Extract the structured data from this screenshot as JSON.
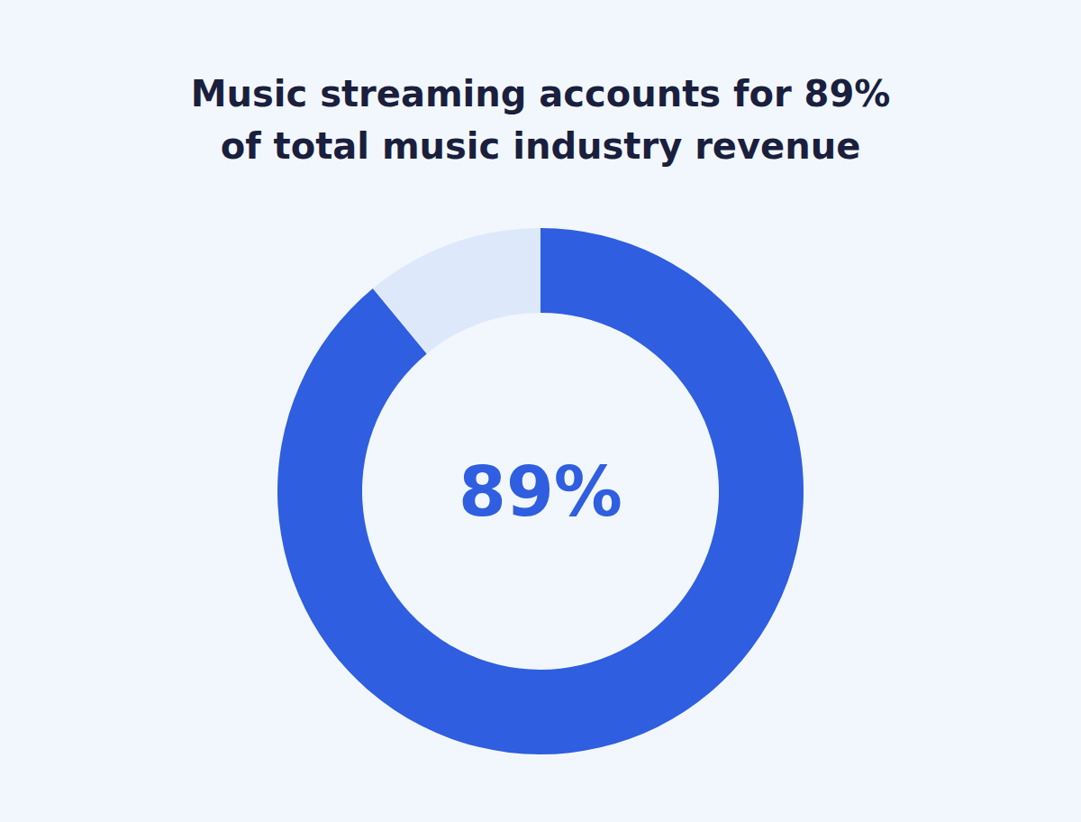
{
  "chart_data": {
    "type": "pie",
    "donut": true,
    "title": "Music streaming accounts for 89%\nof total music industry revenue",
    "values": [
      89,
      11
    ],
    "value_labels": [
      "89%",
      null
    ],
    "colors": [
      "#2f5ee0",
      "#dde8fb"
    ],
    "data_labels": true,
    "legend": false
  }
}
